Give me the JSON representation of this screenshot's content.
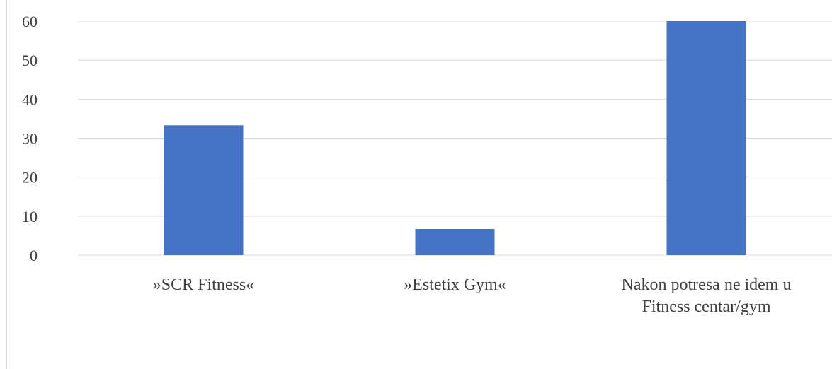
{
  "chart_data": {
    "type": "bar",
    "categories": [
      [
        "»SCR Fitness«"
      ],
      [
        "»Estetix Gym«"
      ],
      [
        "Nakon potresa ne idem u",
        "Fitness centar/gym"
      ]
    ],
    "values": [
      33.3,
      6.7,
      60
    ],
    "yticks": [
      "0",
      "10",
      "20",
      "30",
      "40",
      "50",
      "60"
    ],
    "ylim": [
      0,
      60
    ],
    "grid": true,
    "bar_color": "#4472c4",
    "grid_color": "#d9d9d9"
  }
}
